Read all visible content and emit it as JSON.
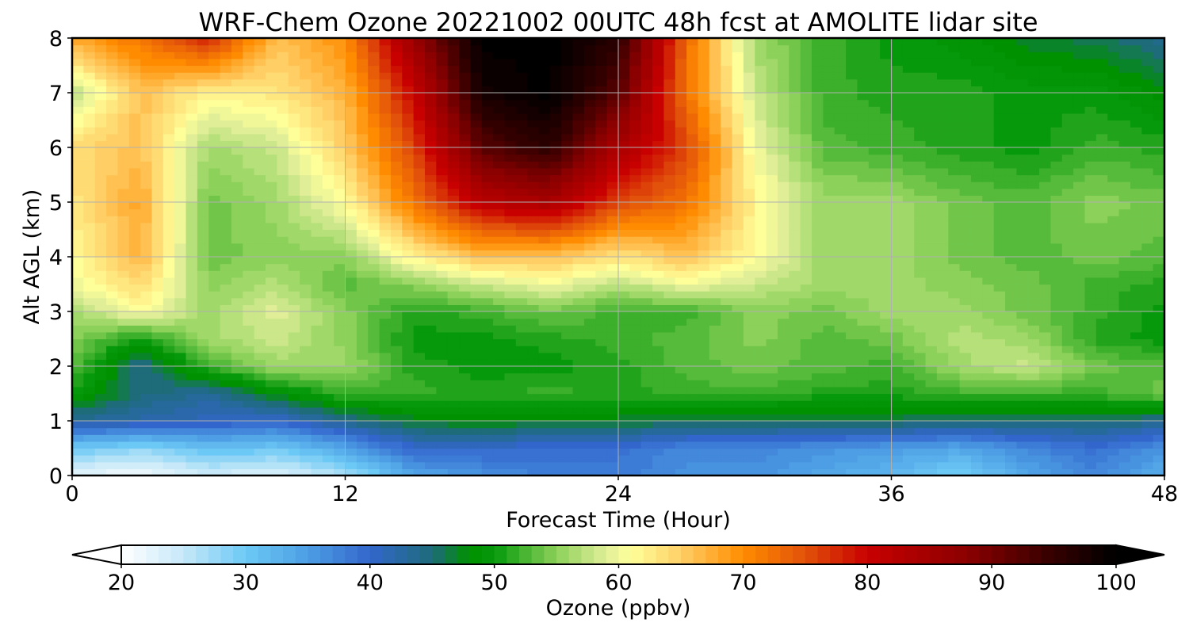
{
  "chart_data": {
    "type": "heatmap",
    "title": "WRF-Chem Ozone  20221002 00UTC 48h fcst at AMOLITE lidar site",
    "xlabel": "Forecast Time (Hour)",
    "ylabel": "Alt AGL (km)",
    "xlim": [
      0,
      48
    ],
    "ylim": [
      0,
      8
    ],
    "x_ticks": [
      "0",
      "12",
      "24",
      "36",
      "48"
    ],
    "y_ticks": [
      "0",
      "1",
      "2",
      "3",
      "4",
      "5",
      "6",
      "7",
      "8"
    ],
    "grid": true,
    "x": [
      0,
      3,
      6,
      9,
      12,
      15,
      18,
      21,
      24,
      27,
      30,
      33,
      36,
      39,
      42,
      45,
      48
    ],
    "y": [
      0,
      0.5,
      1,
      1.5,
      2,
      2.5,
      3,
      3.5,
      4,
      5,
      6,
      7,
      8
    ],
    "z": [
      [
        22,
        21,
        24,
        23,
        26,
        34,
        36,
        38,
        38,
        36,
        36,
        34,
        32,
        29,
        34,
        37,
        33
      ],
      [
        30,
        28,
        31,
        30,
        34,
        40,
        40,
        39,
        39,
        37,
        37,
        36,
        35,
        34,
        37,
        39,
        36
      ],
      [
        43,
        42,
        41,
        40,
        44,
        47,
        48,
        47,
        47,
        46,
        46,
        46,
        46,
        45,
        45,
        45,
        44
      ],
      [
        50,
        45,
        43,
        48,
        52,
        52,
        51,
        52,
        51,
        52,
        52,
        51,
        51,
        52,
        52,
        52,
        54
      ],
      [
        53,
        44,
        52,
        56,
        56,
        51,
        50,
        50,
        51,
        53,
        54,
        53,
        52,
        56,
        58,
        54,
        53
      ],
      [
        55,
        50,
        56,
        58,
        55,
        50,
        50,
        51,
        52,
        53,
        55,
        53,
        54,
        57,
        56,
        51,
        50
      ],
      [
        56,
        61,
        56,
        59,
        55,
        51,
        52,
        54,
        52,
        52,
        55,
        54,
        56,
        56,
        54,
        52,
        50
      ],
      [
        60,
        64,
        55,
        57,
        53,
        55,
        58,
        60,
        57,
        60,
        58,
        56,
        56,
        55,
        54,
        52,
        51
      ],
      [
        61,
        67,
        54,
        55,
        55,
        62,
        66,
        66,
        63,
        66,
        61,
        56,
        56,
        54,
        53,
        54,
        53
      ],
      [
        63,
        68,
        54,
        56,
        61,
        72,
        82,
        84,
        76,
        72,
        62,
        56,
        56,
        54,
        53,
        55,
        54
      ],
      [
        64,
        66,
        56,
        58,
        65,
        76,
        92,
        96,
        84,
        76,
        60,
        53,
        52,
        51,
        50,
        52,
        51
      ],
      [
        57,
        66,
        62,
        63,
        67,
        80,
        98,
        100,
        92,
        72,
        58,
        52,
        51,
        51,
        50,
        50,
        48
      ],
      [
        68,
        72,
        78,
        66,
        70,
        86,
        100,
        100,
        96,
        73,
        56,
        52,
        50,
        49,
        47,
        46,
        44
      ]
    ],
    "colorbar": {
      "label": "Ozone  (ppbv)",
      "min": 20,
      "max": 100,
      "ticks": [
        "20",
        "30",
        "40",
        "50",
        "60",
        "70",
        "80",
        "90",
        "100"
      ],
      "extend": "both",
      "stops": [
        {
          "value": 20,
          "color": "#ffffff"
        },
        {
          "value": 25,
          "color": "#c6e8f8"
        },
        {
          "value": 30,
          "color": "#6cc9f5"
        },
        {
          "value": 35,
          "color": "#4d9ee4"
        },
        {
          "value": 40,
          "color": "#3366cc"
        },
        {
          "value": 45,
          "color": "#1e6b7a"
        },
        {
          "value": 48,
          "color": "#009100"
        },
        {
          "value": 50,
          "color": "#06990c"
        },
        {
          "value": 55,
          "color": "#8cd15a"
        },
        {
          "value": 59,
          "color": "#e0ee98"
        },
        {
          "value": 61,
          "color": "#ffff9a"
        },
        {
          "value": 65,
          "color": "#ffcf66"
        },
        {
          "value": 70,
          "color": "#ff8c00"
        },
        {
          "value": 75,
          "color": "#e2520a"
        },
        {
          "value": 80,
          "color": "#c80000"
        },
        {
          "value": 88,
          "color": "#8b0000"
        },
        {
          "value": 95,
          "color": "#330000"
        },
        {
          "value": 100,
          "color": "#000000"
        }
      ]
    }
  }
}
